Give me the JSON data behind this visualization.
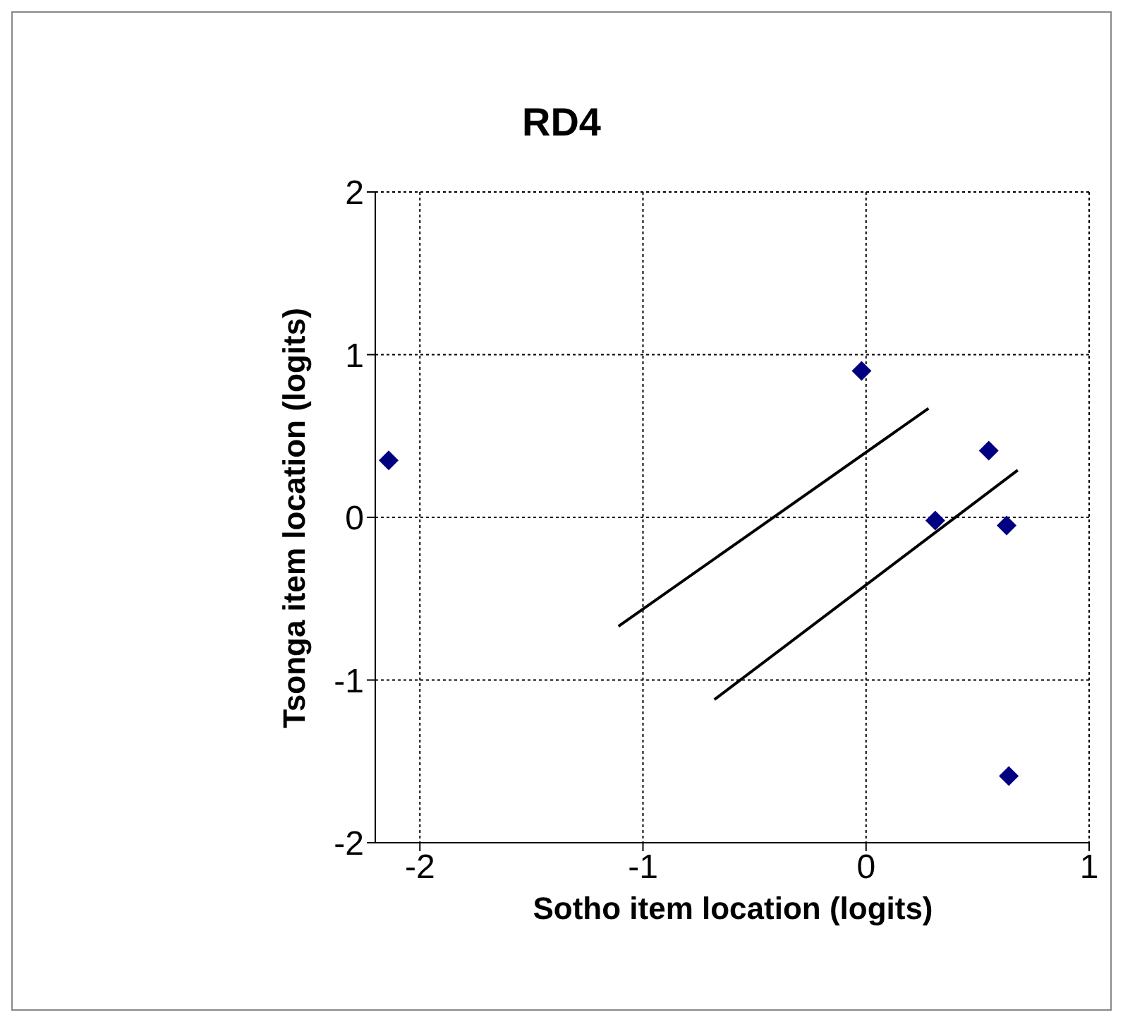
{
  "chart_data": {
    "type": "scatter",
    "title": "RD4",
    "xlabel": "Sotho item location (logits)",
    "ylabel": "Tsonga item location (logits)",
    "xlim": [
      -2.2,
      1
    ],
    "xticks": [
      -2,
      -1,
      0,
      1
    ],
    "ylim": [
      -2,
      2
    ],
    "yticks": [
      -2,
      -1,
      0,
      1,
      2
    ],
    "grid": true,
    "series": [
      {
        "marker": "diamond",
        "color": "#000080",
        "x": [
          -2.14,
          -0.02,
          0.55,
          0.31,
          0.63,
          0.64
        ],
        "values": [
          0.35,
          0.9,
          0.41,
          -0.02,
          -0.05,
          -1.59
        ]
      },
      {
        "type": "line",
        "marker": "none",
        "color": "#000000",
        "x": [
          -1.11,
          0.28
        ],
        "values": [
          -0.67,
          0.67
        ]
      },
      {
        "type": "line",
        "marker": "none",
        "color": "#000000",
        "x": [
          -0.68,
          0.68
        ],
        "values": [
          -1.12,
          0.29
        ]
      }
    ]
  }
}
